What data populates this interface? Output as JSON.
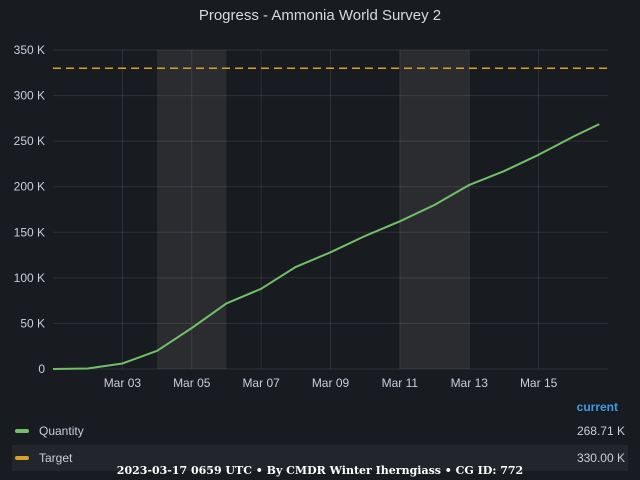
{
  "chart_data": {
    "type": "line",
    "title": "Progress - Ammonia World Survey 2",
    "x_ticks": [
      "Mar 03",
      "Mar 05",
      "Mar 07",
      "Mar 09",
      "Mar 11",
      "Mar 13",
      "Mar 15"
    ],
    "x_range": [
      "2023-03-01",
      "2023-03-17"
    ],
    "y_ticks": [
      "0",
      "50 K",
      "100 K",
      "150 K",
      "200 K",
      "250 K",
      "300 K",
      "350 K"
    ],
    "ylim": [
      0,
      350000
    ],
    "grid": true,
    "shaded_ranges": [
      [
        "2023-03-04",
        "2023-03-06"
      ],
      [
        "2023-03-11",
        "2023-03-13"
      ]
    ],
    "series": [
      {
        "name": "Quantity",
        "color": "#73bf69",
        "style": "solid",
        "points": [
          [
            "2023-03-01",
            0
          ],
          [
            "2023-03-02",
            500
          ],
          [
            "2023-03-03",
            6000
          ],
          [
            "2023-03-04",
            20000
          ],
          [
            "2023-03-05",
            45000
          ],
          [
            "2023-03-06",
            72000
          ],
          [
            "2023-03-07",
            88000
          ],
          [
            "2023-03-08",
            112000
          ],
          [
            "2023-03-09",
            128000
          ],
          [
            "2023-03-10",
            146000
          ],
          [
            "2023-03-11",
            162000
          ],
          [
            "2023-03-12",
            180000
          ],
          [
            "2023-03-13",
            202000
          ],
          [
            "2023-03-14",
            217000
          ],
          [
            "2023-03-15",
            235000
          ],
          [
            "2023-03-16",
            255000
          ],
          [
            "2023-03-16 18:00",
            268710
          ]
        ]
      },
      {
        "name": "Target",
        "color": "#d8a22a",
        "style": "dashed",
        "points": [
          [
            "2023-03-01",
            330000
          ],
          [
            "2023-03-17",
            330000
          ]
        ]
      }
    ]
  },
  "legend": {
    "header": "current",
    "items": [
      {
        "name": "Quantity",
        "value": "268.71 K",
        "color": "#73bf69"
      },
      {
        "name": "Target",
        "value": "330.00 K",
        "color": "#d8a22a"
      }
    ]
  },
  "footer": "2023-03-17 0659 UTC • By CMDR Winter Iherngiass • CG ID: 772"
}
